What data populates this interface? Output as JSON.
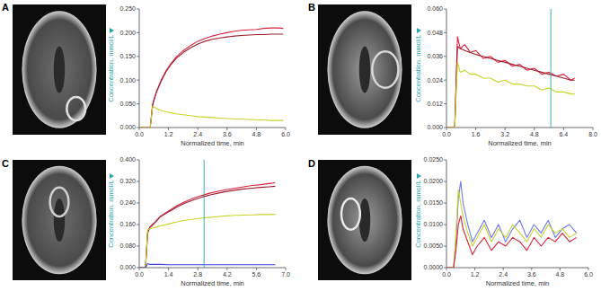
{
  "chart_data": [
    {
      "type": "line",
      "title": "A",
      "x_label": "Normalized time, min",
      "y_label": "Concentration, mmol/L",
      "x": [
        0.0,
        0.45,
        0.55,
        0.7,
        0.9,
        1.1,
        1.3,
        1.5,
        1.8,
        2.1,
        2.4,
        2.7,
        3.0,
        3.3,
        3.6,
        3.9,
        4.2,
        4.5,
        4.8,
        5.1,
        5.4,
        5.7,
        5.9
      ],
      "xlim": [
        0.0,
        6.0
      ],
      "xticks": [
        {
          "value": 0,
          "label": "0.0"
        },
        {
          "value": 1.2,
          "label": "1.2"
        },
        {
          "value": 2.4,
          "label": "2.4"
        },
        {
          "value": 3.6,
          "label": "3.6"
        },
        {
          "value": 4.8,
          "label": "4.8"
        },
        {
          "value": 6,
          "label": "6.0"
        }
      ],
      "ylim": [
        0,
        0.25
      ],
      "yticks": [
        {
          "value": 0,
          "label": "0.000"
        },
        {
          "value": 0.05,
          "label": "0.050"
        },
        {
          "value": 0.1,
          "label": "0.100"
        },
        {
          "value": 0.15,
          "label": "0.150"
        },
        {
          "value": 0.2,
          "label": "0.200"
        },
        {
          "value": 0.25,
          "label": "0.250"
        }
      ],
      "series": [
        {
          "color": "#d9213c",
          "values": [
            0,
            0,
            0.05,
            0.075,
            0.1,
            0.12,
            0.135,
            0.148,
            0.162,
            0.173,
            0.182,
            0.188,
            0.193,
            0.197,
            0.2,
            0.203,
            0.205,
            0.206,
            0.207,
            0.209,
            0.21,
            0.21,
            0.209
          ]
        },
        {
          "color": "#9e1b2a",
          "values": [
            0,
            0,
            0.048,
            0.074,
            0.098,
            0.118,
            0.133,
            0.145,
            0.158,
            0.168,
            0.176,
            0.182,
            0.186,
            0.189,
            0.191,
            0.193,
            0.194,
            0.195,
            0.196,
            0.196,
            0.197,
            0.197,
            0.197
          ]
        },
        {
          "color": "#c5d32b",
          "values": [
            0,
            0,
            0.045,
            0.04,
            0.036,
            0.033,
            0.031,
            0.029,
            0.027,
            0.025,
            0.023,
            0.022,
            0.021,
            0.02,
            0.019,
            0.018,
            0.018,
            0.017,
            0.016,
            0.016,
            0.015,
            0.015,
            0.015
          ]
        }
      ]
    },
    {
      "type": "line",
      "title": "B",
      "x_label": "Normalized time, min",
      "y_label": "Concentration, mmol/L",
      "x": [
        0.0,
        0.45,
        0.6,
        0.75,
        1.0,
        1.3,
        1.6,
        2.0,
        2.4,
        2.8,
        3.2,
        3.6,
        4.0,
        4.4,
        4.8,
        5.2,
        5.6,
        6.0,
        6.4,
        6.8,
        7.0
      ],
      "xlim": [
        0.0,
        8.0
      ],
      "xticks": [
        {
          "value": 0,
          "label": "0.0"
        },
        {
          "value": 1.6,
          "label": "1.6"
        },
        {
          "value": 3.2,
          "label": "3.2"
        },
        {
          "value": 4.8,
          "label": "4.8"
        },
        {
          "value": 6.4,
          "label": "6.4"
        },
        {
          "value": 8,
          "label": "8.0"
        }
      ],
      "ylim": [
        0,
        0.06
      ],
      "yticks": [
        {
          "value": 0,
          "label": "0.000"
        },
        {
          "value": 0.012,
          "label": "0.012"
        },
        {
          "value": 0.024,
          "label": "0.024"
        },
        {
          "value": 0.036,
          "label": "0.036"
        },
        {
          "value": 0.048,
          "label": "0.048"
        },
        {
          "value": 0.06,
          "label": "0.060"
        }
      ],
      "series": [
        {
          "color": "#d9213c",
          "values": [
            0,
            0,
            0.046,
            0.04,
            0.042,
            0.038,
            0.039,
            0.035,
            0.036,
            0.033,
            0.034,
            0.031,
            0.032,
            0.029,
            0.03,
            0.027,
            0.028,
            0.026,
            0.027,
            0.024,
            0.025
          ]
        },
        {
          "color": "#9e1b2a",
          "values": [
            0,
            0,
            0.041,
            0.04,
            0.039,
            0.038,
            0.037,
            0.036,
            0.035,
            0.034,
            0.033,
            0.032,
            0.031,
            0.03,
            0.029,
            0.028,
            0.027,
            0.026,
            0.025,
            0.024,
            0.024
          ]
        },
        {
          "color": "#c5d32b",
          "values": [
            0,
            0,
            0.033,
            0.028,
            0.029,
            0.027,
            0.027,
            0.025,
            0.025,
            0.023,
            0.024,
            0.022,
            0.022,
            0.021,
            0.021,
            0.019,
            0.02,
            0.018,
            0.018,
            0.017,
            0.017
          ]
        },
        {
          "type": "vline",
          "color": "#2aa3ad",
          "x": [
            5.7,
            5.7
          ],
          "values": [
            0,
            0.06
          ]
        }
      ]
    },
    {
      "type": "line",
      "title": "C",
      "x_label": "Normalized time, min",
      "y_label": "Concentration, mmol/L",
      "x": [
        0.0,
        0.3,
        0.4,
        0.5,
        0.7,
        1.0,
        1.4,
        1.8,
        2.2,
        2.6,
        3.0,
        3.4,
        3.8,
        4.2,
        4.6,
        5.0,
        5.4,
        5.8,
        6.2,
        6.5
      ],
      "xlim": [
        0.0,
        7.0
      ],
      "xticks": [
        {
          "value": 0,
          "label": "0.0"
        },
        {
          "value": 1.4,
          "label": "1.4"
        },
        {
          "value": 2.8,
          "label": "2.8"
        },
        {
          "value": 4.2,
          "label": "4.2"
        },
        {
          "value": 5.6,
          "label": "5.6"
        },
        {
          "value": 7,
          "label": "7.0"
        }
      ],
      "ylim": [
        0,
        0.4
      ],
      "yticks": [
        {
          "value": 0,
          "label": "0.000"
        },
        {
          "value": 0.08,
          "label": "0.080"
        },
        {
          "value": 0.16,
          "label": "0.160"
        },
        {
          "value": 0.24,
          "label": "0.240"
        },
        {
          "value": 0.32,
          "label": "0.320"
        },
        {
          "value": 0.4,
          "label": "0.400"
        }
      ],
      "series": [
        {
          "color": "#d9213c",
          "values": [
            0,
            0,
            0.13,
            0.15,
            0.165,
            0.19,
            0.21,
            0.23,
            0.245,
            0.258,
            0.268,
            0.277,
            0.284,
            0.29,
            0.295,
            0.3,
            0.305,
            0.308,
            0.312,
            0.315
          ]
        },
        {
          "color": "#9e1b2a",
          "values": [
            0,
            0,
            0.128,
            0.148,
            0.163,
            0.188,
            0.207,
            0.225,
            0.24,
            0.252,
            0.262,
            0.27,
            0.277,
            0.283,
            0.288,
            0.292,
            0.295,
            0.298,
            0.3,
            0.302
          ]
        },
        {
          "color": "#c5d32b",
          "values": [
            0,
            0,
            0.14,
            0.145,
            0.148,
            0.155,
            0.162,
            0.17,
            0.176,
            0.18,
            0.184,
            0.187,
            0.19,
            0.192,
            0.194,
            0.195,
            0.196,
            0.197,
            0.197,
            0.198
          ]
        },
        {
          "color": "#3d3de0",
          "values": [
            0,
            0,
            0.015,
            0.012,
            0.012,
            0.012,
            0.011,
            0.011,
            0.011,
            0.011,
            0.011,
            0.011,
            0.011,
            0.011,
            0.011,
            0.011,
            0.011,
            0.011,
            0.011,
            0.011
          ]
        },
        {
          "type": "vline",
          "color": "#2aa3ad",
          "x": [
            3.1,
            3.1
          ],
          "values": [
            0,
            0.4
          ]
        }
      ]
    },
    {
      "type": "line",
      "title": "D",
      "x_label": "Normalized time, min",
      "y_label": "Concentration, mmol/L",
      "x": [
        0.0,
        0.3,
        0.4,
        0.5,
        0.6,
        0.7,
        0.9,
        1.1,
        1.3,
        1.6,
        1.9,
        2.2,
        2.5,
        2.8,
        3.1,
        3.4,
        3.7,
        4.0,
        4.3,
        4.6,
        4.9,
        5.2,
        5.5
      ],
      "xlim": [
        0.0,
        6.0
      ],
      "xticks": [
        {
          "value": 0,
          "label": "0.0"
        },
        {
          "value": 1.2,
          "label": "1.2"
        },
        {
          "value": 2.4,
          "label": "2.4"
        },
        {
          "value": 3.6,
          "label": "3.6"
        },
        {
          "value": 4.8,
          "label": "4.8"
        },
        {
          "value": 6,
          "label": "6.0"
        }
      ],
      "ylim": [
        0,
        0.025
      ],
      "yticks": [
        {
          "value": 0,
          "label": "0.0000"
        },
        {
          "value": 0.005,
          "label": "0.0050"
        },
        {
          "value": 0.01,
          "label": "0.0100"
        },
        {
          "value": 0.015,
          "label": "0.0150"
        },
        {
          "value": 0.02,
          "label": "0.0200"
        },
        {
          "value": 0.025,
          "label": "0.0250"
        }
      ],
      "series": [
        {
          "color": "#6a78f0",
          "values": [
            0,
            0,
            0.006,
            0.016,
            0.02,
            0.015,
            0.01,
            0.006,
            0.008,
            0.011,
            0.007,
            0.01,
            0.006,
            0.009,
            0.011,
            0.007,
            0.01,
            0.008,
            0.011,
            0.007,
            0.009,
            0.01,
            0.008
          ]
        },
        {
          "color": "#c5d32b",
          "values": [
            0,
            0,
            0.008,
            0.018,
            0.015,
            0.012,
            0.008,
            0.005,
            0.007,
            0.01,
            0.006,
            0.009,
            0.007,
            0.01,
            0.008,
            0.006,
            0.009,
            0.007,
            0.01,
            0.008,
            0.009,
            0.007,
            0.008
          ]
        },
        {
          "color": "#d9213c",
          "values": [
            0,
            0,
            0.004,
            0.01,
            0.012,
            0.009,
            0.006,
            0.003,
            0.005,
            0.007,
            0.004,
            0.006,
            0.005,
            0.007,
            0.006,
            0.004,
            0.007,
            0.005,
            0.007,
            0.006,
            0.008,
            0.006,
            0.007
          ]
        }
      ]
    }
  ]
}
